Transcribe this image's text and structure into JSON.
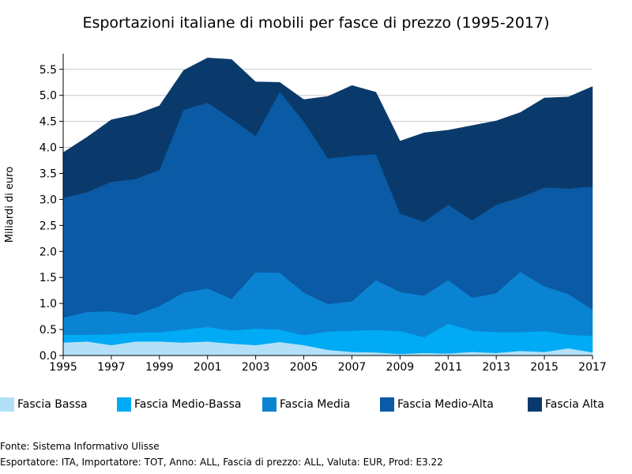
{
  "chart_data": {
    "type": "area",
    "stacked": true,
    "title": "Esportazioni italiane di mobili per fasce di prezzo (1995-2017)",
    "xlabel": "",
    "ylabel": "Miliardi di euro",
    "xlim": [
      1995,
      2017
    ],
    "ylim": [
      0,
      5.8
    ],
    "grid": "horizontal",
    "legend_position": "bottom",
    "x": [
      1995,
      1996,
      1997,
      1998,
      1999,
      2000,
      2001,
      2002,
      2003,
      2004,
      2005,
      2006,
      2007,
      2008,
      2009,
      2010,
      2011,
      2012,
      2013,
      2014,
      2015,
      2016,
      2017
    ],
    "xticks": [
      "1995",
      "1997",
      "1999",
      "2001",
      "2003",
      "2005",
      "2007",
      "2009",
      "2011",
      "2013",
      "2015",
      "2017"
    ],
    "yticks": [
      "0.0",
      "0.5",
      "1.0",
      "1.5",
      "2.0",
      "2.5",
      "3.0",
      "3.5",
      "4.0",
      "4.5",
      "5.0",
      "5.5"
    ],
    "series": [
      {
        "name": "Fascia Bassa",
        "color": "#b3e0f7",
        "values": [
          0.25,
          0.27,
          0.2,
          0.27,
          0.27,
          0.25,
          0.27,
          0.23,
          0.2,
          0.26,
          0.2,
          0.11,
          0.07,
          0.06,
          0.03,
          0.05,
          0.04,
          0.07,
          0.05,
          0.09,
          0.07,
          0.14,
          0.06
        ]
      },
      {
        "name": "Fascia Medio-Bassa",
        "color": "#00aaf5",
        "values": [
          0.15,
          0.13,
          0.21,
          0.17,
          0.18,
          0.25,
          0.28,
          0.25,
          0.32,
          0.24,
          0.19,
          0.35,
          0.41,
          0.43,
          0.44,
          0.3,
          0.57,
          0.41,
          0.4,
          0.36,
          0.4,
          0.26,
          0.32
        ]
      },
      {
        "name": "Fascia Media",
        "color": "#0a84d2",
        "values": [
          0.33,
          0.44,
          0.44,
          0.34,
          0.5,
          0.71,
          0.74,
          0.61,
          1.08,
          1.09,
          0.82,
          0.53,
          0.56,
          0.96,
          0.75,
          0.8,
          0.84,
          0.63,
          0.75,
          1.16,
          0.86,
          0.78,
          0.5
        ]
      },
      {
        "name": "Fascia Medio-Alta",
        "color": "#0a5aa5",
        "values": [
          2.3,
          2.3,
          2.49,
          2.61,
          2.62,
          3.51,
          3.57,
          3.46,
          2.62,
          3.48,
          3.29,
          2.8,
          2.8,
          2.42,
          1.51,
          1.42,
          1.45,
          1.49,
          1.7,
          1.43,
          1.9,
          2.03,
          2.37
        ]
      },
      {
        "name": "Fascia Alta",
        "color": "#0a3a6b",
        "values": [
          0.87,
          1.06,
          1.19,
          1.24,
          1.23,
          0.76,
          0.86,
          1.14,
          1.04,
          0.18,
          0.42,
          1.19,
          1.35,
          1.19,
          1.39,
          1.71,
          1.43,
          1.82,
          1.61,
          1.63,
          1.72,
          1.76,
          1.92
        ]
      }
    ]
  },
  "footer": {
    "source": "Fonte: Sistema Informativo Ulisse",
    "params": "Esportatore: ITA, Importatore: TOT, Anno: ALL, Fascia di prezzo: ALL, Valuta: EUR, Prod: E3.22"
  }
}
